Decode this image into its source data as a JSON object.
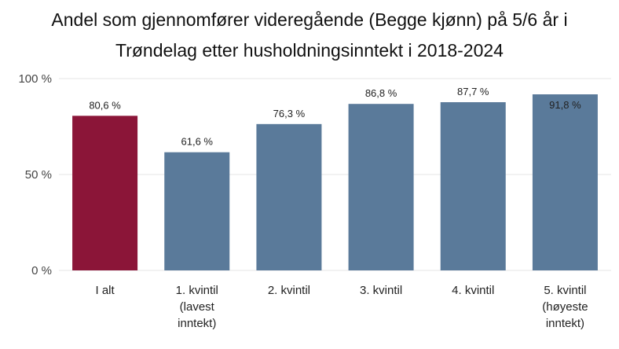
{
  "chart_data": {
    "type": "bar",
    "title_lines": [
      "Andel som gjennomfører videregående (Begge kjønn) på 5/6 år i",
      "Trøndelag etter husholdningsinntekt i 2018-2024"
    ],
    "categories": [
      [
        "I alt"
      ],
      [
        "1. kvintil",
        "(lavest",
        "inntekt)"
      ],
      [
        "2. kvintil"
      ],
      [
        "3. kvintil"
      ],
      [
        "4. kvintil"
      ],
      [
        "5. kvintil",
        "(høyeste",
        "inntekt)"
      ]
    ],
    "values": [
      80.6,
      61.6,
      76.3,
      86.8,
      87.7,
      91.8
    ],
    "data_labels": [
      "80,6 %",
      "61,6 %",
      "76,3 %",
      "86,8 %",
      "87,7 %",
      "91,8 %"
    ],
    "y_ticks": [
      0,
      50,
      100
    ],
    "y_tick_labels": [
      "0 %",
      "50 %",
      "100 %"
    ],
    "ylim": [
      0,
      100
    ],
    "grid": true,
    "colors": {
      "highlight": "#8b1538",
      "bar": "#5a7a9a",
      "grid": "#e6e6e6"
    },
    "highlight_index": 0
  }
}
